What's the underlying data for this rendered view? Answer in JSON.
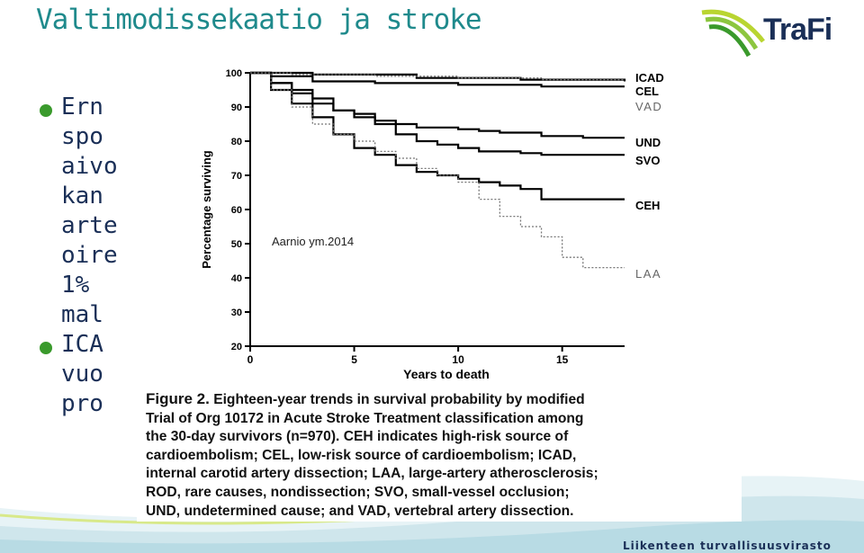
{
  "slide": {
    "title": "Valtimodissekaatio ja stroke",
    "logo_text": "TraFi",
    "footer": "Liikenteen turvallisuusvirasto",
    "bullet_lines": [
      {
        "text": "Ern",
        "bullet": true
      },
      {
        "text": "spo",
        "bullet": false
      },
      {
        "text": "aivo",
        "bullet": false
      },
      {
        "text": "kan",
        "bullet": false
      },
      {
        "text": "arte",
        "bullet": false
      },
      {
        "text": "oire",
        "bullet": false
      },
      {
        "text": "1%",
        "bullet": false
      },
      {
        "text": "mal",
        "bullet": false
      },
      {
        "text": "ICA",
        "bullet": true
      },
      {
        "text": "vuo",
        "bullet": false
      },
      {
        "text": "pro",
        "bullet": false
      }
    ]
  },
  "figure": {
    "source_note": "Aarnio ym.2014",
    "caption_label": "Figure 2.",
    "caption_lines": [
      " Eighteen-year trends in survival probability by modified",
      "Trial of Org 10172 in Acute Stroke Treatment classification among",
      "the 30-day survivors (n=970). CEH indicates high-risk source of",
      "cardioembolism; CEL, low-risk source of cardioembolism; ICAD,",
      "internal carotid artery dissection; LAA, large-artery atherosclerosis;",
      "ROD, rare causes, nondissection; SVO, small-vessel occlusion;",
      "UND, undetermined cause; and VAD, vertebral artery dissection."
    ]
  },
  "chart_data": {
    "type": "line",
    "xlabel": "Years to death",
    "ylabel": "Percentage surviving",
    "xlim": [
      0,
      18
    ],
    "ylim": [
      20,
      100
    ],
    "xticks": [
      0,
      5,
      10,
      15
    ],
    "yticks": [
      20,
      30,
      40,
      50,
      60,
      70,
      80,
      90,
      100
    ],
    "grid": false,
    "legend": "right-end labels",
    "series": [
      {
        "name": "ICAD",
        "style": "solid",
        "points": [
          [
            0,
            100
          ],
          [
            3,
            99.5
          ],
          [
            8,
            98.5
          ],
          [
            13,
            98
          ],
          [
            18,
            97.5
          ]
        ]
      },
      {
        "name": "CEL",
        "style": "solid",
        "points": [
          [
            0,
            100
          ],
          [
            1,
            99
          ],
          [
            3,
            97.5
          ],
          [
            6,
            97
          ],
          [
            10,
            96.5
          ],
          [
            14,
            96
          ],
          [
            18,
            96
          ]
        ]
      },
      {
        "name": "VAD",
        "style": "dotted",
        "points": [
          [
            0,
            100
          ],
          [
            2,
            99.5
          ],
          [
            6,
            99
          ],
          [
            10,
            98.5
          ],
          [
            14,
            98
          ],
          [
            18,
            98
          ]
        ]
      },
      {
        "name": "UND",
        "style": "solid",
        "points": [
          [
            0,
            100
          ],
          [
            1,
            97
          ],
          [
            2,
            94
          ],
          [
            3,
            91
          ],
          [
            4,
            89
          ],
          [
            5,
            88
          ],
          [
            6,
            86
          ],
          [
            7,
            85
          ],
          [
            8,
            84
          ],
          [
            9,
            84
          ],
          [
            10,
            83.5
          ],
          [
            11,
            83
          ],
          [
            12,
            82.5
          ],
          [
            14,
            81.5
          ],
          [
            16,
            81
          ],
          [
            18,
            81
          ]
        ]
      },
      {
        "name": "SVO",
        "style": "solid",
        "points": [
          [
            0,
            100
          ],
          [
            1,
            97
          ],
          [
            2,
            95
          ],
          [
            3,
            92.5
          ],
          [
            4,
            89
          ],
          [
            5,
            87
          ],
          [
            6,
            85
          ],
          [
            7,
            82
          ],
          [
            8,
            80
          ],
          [
            9,
            79
          ],
          [
            10,
            78
          ],
          [
            11,
            77
          ],
          [
            12,
            77
          ],
          [
            13,
            76.5
          ],
          [
            14,
            76
          ],
          [
            16,
            76
          ],
          [
            18,
            76
          ]
        ]
      },
      {
        "name": "CEH",
        "style": "solid",
        "points": [
          [
            0,
            100
          ],
          [
            1,
            95
          ],
          [
            2,
            91
          ],
          [
            3,
            87
          ],
          [
            4,
            82
          ],
          [
            5,
            78
          ],
          [
            6,
            76
          ],
          [
            7,
            73
          ],
          [
            8,
            71
          ],
          [
            9,
            70
          ],
          [
            10,
            69
          ],
          [
            11,
            68
          ],
          [
            12,
            67
          ],
          [
            13,
            66
          ],
          [
            14,
            63
          ],
          [
            15,
            63
          ],
          [
            16,
            63
          ],
          [
            18,
            63
          ]
        ]
      },
      {
        "name": "LAA",
        "style": "dotted",
        "points": [
          [
            0,
            100
          ],
          [
            1,
            95
          ],
          [
            2,
            90
          ],
          [
            3,
            85
          ],
          [
            4,
            82
          ],
          [
            5,
            80
          ],
          [
            6,
            77
          ],
          [
            7,
            75
          ],
          [
            8,
            72
          ],
          [
            9,
            70
          ],
          [
            10,
            68
          ],
          [
            11,
            63
          ],
          [
            12,
            58
          ],
          [
            13,
            55
          ],
          [
            14,
            52
          ],
          [
            15,
            46
          ],
          [
            16,
            43
          ],
          [
            18,
            43
          ]
        ]
      }
    ]
  }
}
